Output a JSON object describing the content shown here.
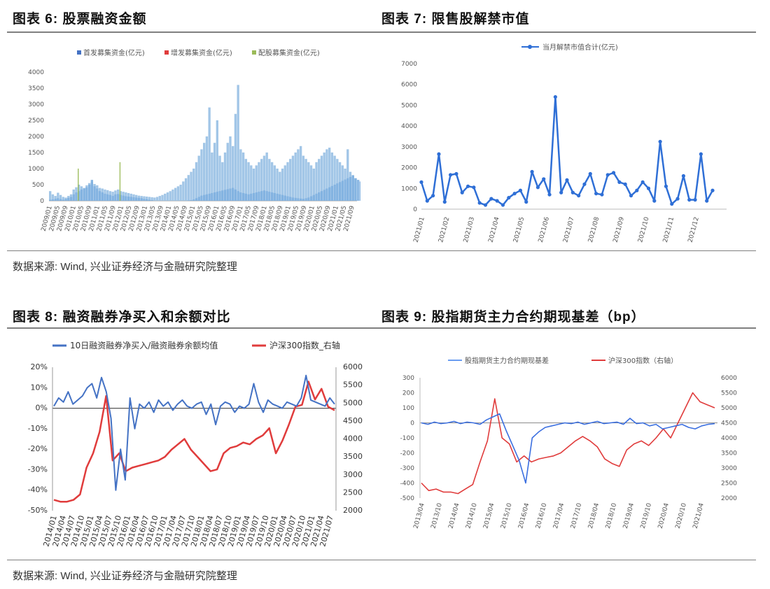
{
  "titles": {
    "fig6": "图表 6: 股票融资金额",
    "fig7": "图表 7: 限售股解禁市值",
    "fig8": "图表 8: 融资融券净买入和余额对比",
    "fig9": "图表 9: 股指期货主力合约期现基差（bp）"
  },
  "source": {
    "top": "数据来源: Wind, 兴业证券经济与金融研究院整理",
    "bottom": "数据来源: Wind, 兴业证券经济与金融研究院整理"
  },
  "colors": {
    "blue": "#4472c4",
    "red": "#e03c3c",
    "lightblue": "#9dc3e6",
    "lightred": "#f4a6a6",
    "green": "#9bbb59",
    "line7": "#2f6fd6"
  },
  "chart_data": [
    {
      "id": "fig6",
      "type": "bar",
      "legend": [
        "首发募集资金(亿元)",
        "增发募集资金(亿元)",
        "配股募集资金(亿元)"
      ],
      "yticks": [
        "0",
        "500",
        "1000",
        "1500",
        "2000",
        "2500",
        "3000",
        "3500",
        "4000"
      ],
      "ylim": [
        0,
        4000
      ],
      "xticks": [
        "2009/01",
        "2009/05",
        "2009/09",
        "2010/01",
        "2010/05",
        "2010/09",
        "2011/01",
        "2011/05",
        "2011/09",
        "2012/01",
        "2012/05",
        "2012/09",
        "2013/01",
        "2013/05",
        "2013/09",
        "2014/01",
        "2014/05",
        "2014/09",
        "2015/01",
        "2015/05",
        "2015/09",
        "2016/01",
        "2016/05",
        "2016/09",
        "2017/01",
        "2017/05",
        "2017/09",
        "2018/01",
        "2018/05",
        "2018/09",
        "2019/01",
        "2019/05",
        "2019/09",
        "2020/01",
        "2020/05",
        "2020/09",
        "2021/01",
        "2021/05",
        "2021/09"
      ],
      "series": [
        {
          "name": "首发募集资金(亿元)",
          "values": [
            30,
            40,
            60,
            80,
            50,
            30,
            60,
            90,
            120,
            200,
            260,
            300,
            350,
            380,
            420,
            500,
            650,
            450,
            380,
            300,
            260,
            220,
            200,
            180,
            150,
            200,
            210,
            180,
            160,
            140,
            130,
            120,
            110,
            100,
            90,
            80,
            60,
            50,
            30,
            20,
            0,
            0,
            0,
            0,
            0,
            0,
            0,
            0,
            0,
            0,
            0,
            0,
            0,
            10,
            20,
            40,
            80,
            120,
            160,
            180,
            200,
            220,
            240,
            260,
            280,
            300,
            320,
            340,
            360,
            380,
            400,
            350,
            300,
            260,
            240,
            220,
            200,
            220,
            240,
            260,
            280,
            300,
            320,
            300,
            280,
            260,
            240,
            220,
            200,
            180,
            160,
            140,
            120,
            100,
            90,
            80,
            70,
            60,
            80,
            100,
            140,
            180,
            220,
            260,
            300,
            340,
            380,
            420,
            460,
            500,
            540,
            580,
            620,
            660,
            700,
            740,
            780,
            700,
            650,
            600,
            550,
            500
          ]
        },
        {
          "name": "增发募集资金(亿元)",
          "values": [
            300,
            200,
            150,
            250,
            180,
            120,
            100,
            150,
            200,
            350,
            420,
            500,
            450,
            400,
            480,
            550,
            600,
            520,
            480,
            400,
            380,
            350,
            330,
            300,
            280,
            320,
            350,
            300,
            280,
            260,
            240,
            220,
            200,
            180,
            160,
            150,
            140,
            130,
            120,
            110,
            100,
            120,
            150,
            180,
            220,
            260,
            300,
            350,
            400,
            450,
            500,
            600,
            700,
            800,
            900,
            1000,
            1200,
            1400,
            1600,
            1800,
            2000,
            2900,
            1500,
            1800,
            2500,
            1400,
            1200,
            1500,
            1800,
            2000,
            1700,
            2700,
            3600,
            1600,
            1500,
            1300,
            1200,
            1100,
            1000,
            1100,
            1200,
            1300,
            1400,
            1500,
            1300,
            1200,
            1100,
            1000,
            900,
            1000,
            1100,
            1200,
            1300,
            1400,
            1500,
            1600,
            1700,
            1400,
            1300,
            1200,
            1100,
            1000,
            1200,
            1300,
            1400,
            1500,
            1600,
            1650,
            1500,
            1400,
            1300,
            1200,
            1100,
            1000,
            1600,
            900,
            800,
            700
          ]
        },
        {
          "name": "配股募集资金(亿元)",
          "values": [
            0,
            0,
            0,
            0,
            0,
            0,
            0,
            0,
            0,
            0,
            0,
            1000,
            0,
            0,
            0,
            0,
            0,
            0,
            0,
            0,
            0,
            0,
            0,
            0,
            0,
            0,
            0,
            1200,
            0,
            0,
            0,
            0,
            0,
            0,
            0,
            0,
            0,
            0,
            0,
            0,
            0,
            0,
            0,
            0,
            0,
            0,
            0,
            0,
            0,
            0,
            0,
            0,
            0,
            0,
            0,
            0,
            0,
            0,
            0,
            0,
            0,
            0,
            0,
            0,
            0,
            0,
            0,
            0,
            0,
            0,
            0,
            0,
            0,
            0,
            0,
            0,
            0,
            0,
            0,
            0,
            0,
            0,
            0,
            0,
            0,
            0,
            0,
            0,
            0,
            0,
            0,
            0,
            0,
            0,
            0,
            0,
            0,
            0,
            0,
            0,
            0,
            0,
            0,
            0,
            0,
            0,
            0,
            0,
            0,
            0,
            0,
            0,
            0,
            0,
            0,
            0,
            0,
            0,
            0,
            0,
            0
          ]
        }
      ]
    },
    {
      "id": "fig7",
      "type": "line",
      "legend": [
        "当月解禁市值合计(亿元)"
      ],
      "yticks": [
        "0",
        "1000",
        "2000",
        "3000",
        "4000",
        "5000",
        "6000",
        "7000"
      ],
      "ylim": [
        0,
        7000
      ],
      "xticks": [
        "2021/01",
        "2021/02",
        "2021/03",
        "2021/04",
        "2021/05",
        "2021/06",
        "2021/07",
        "2021/08",
        "2021/09",
        "2021/10",
        "2021/11",
        "2021/12"
      ],
      "values": [
        1300,
        400,
        650,
        2650,
        350,
        1650,
        1700,
        800,
        1100,
        1050,
        300,
        200,
        500,
        400,
        200,
        550,
        750,
        900,
        350,
        1800,
        1050,
        1450,
        700,
        5400,
        800,
        1400,
        800,
        650,
        1200,
        1700,
        750,
        700,
        1650,
        1750,
        1300,
        1200,
        650,
        900,
        1300,
        1000,
        400,
        3250,
        1100,
        250,
        500,
        1600,
        450,
        450,
        2650,
        400,
        900
      ]
    },
    {
      "id": "fig8",
      "type": "line",
      "legend": [
        "10日融资融券净买入/融资融券余额均值",
        "沪深300指数_右轴"
      ],
      "yticks_left": [
        "20%",
        "10%",
        "0%",
        "-10%",
        "-20%",
        "-30%",
        "-40%",
        "-50%"
      ],
      "ylim_left": [
        -50,
        20
      ],
      "yticks_right": [
        "6000",
        "5500",
        "5000",
        "4500",
        "4000",
        "3500",
        "3000",
        "2500",
        "2000"
      ],
      "ylim_right": [
        2000,
        6000
      ],
      "xticks": [
        "2014/01",
        "2014/04",
        "2014/07",
        "2014/10",
        "2015/01",
        "2015/04",
        "2015/07",
        "2015/10",
        "2016/01",
        "2016/04",
        "2016/07",
        "2016/10",
        "2017/01",
        "2017/04",
        "2017/07",
        "2017/10",
        "2018/01",
        "2018/04",
        "2018/07",
        "2018/10",
        "2019/01",
        "2019/04",
        "2019/07",
        "2019/10",
        "2020/01",
        "2020/04",
        "2020/07",
        "2020/10",
        "2021/01",
        "2021/04",
        "2021/07"
      ],
      "series": [
        {
          "name": "10日融资融券净买入/融资融券余额均值",
          "values": [
            1,
            5,
            3,
            8,
            2,
            4,
            6,
            10,
            12,
            5,
            15,
            8,
            -5,
            -40,
            -20,
            -35,
            5,
            -10,
            2,
            0,
            3,
            -2,
            4,
            1,
            3,
            -1,
            2,
            4,
            1,
            0,
            2,
            3,
            -3,
            2,
            -8,
            1,
            3,
            2,
            -2,
            1,
            0,
            2,
            12,
            3,
            -2,
            4,
            2,
            1,
            0,
            3,
            2,
            1,
            5,
            16,
            4,
            3,
            2,
            1,
            5,
            2
          ]
        },
        {
          "name": "沪深300指数_右轴",
          "values": [
            2300,
            2250,
            2250,
            2300,
            2450,
            3200,
            3600,
            4200,
            5200,
            3400,
            3600,
            3100,
            3200,
            3250,
            3300,
            3350,
            3400,
            3500,
            3700,
            3850,
            4000,
            3700,
            3500,
            3300,
            3100,
            3150,
            3600,
            3750,
            3800,
            3900,
            3850,
            4000,
            4100,
            4300,
            3600,
            3950,
            4400,
            4900,
            4950,
            5600,
            5100,
            5400,
            4900,
            4800
          ]
        }
      ]
    },
    {
      "id": "fig9",
      "type": "line",
      "legend": [
        "股指期货主力合约期现基差",
        "沪深300指数（右轴）"
      ],
      "yticks_left": [
        "300",
        "200",
        "100",
        "0",
        "-100",
        "-200",
        "-300",
        "-400",
        "-500"
      ],
      "ylim_left": [
        -500,
        300
      ],
      "yticks_right": [
        "6000",
        "5500",
        "5000",
        "4500",
        "4000",
        "3500",
        "3000",
        "2500",
        "2000"
      ],
      "ylim_right": [
        2000,
        6000
      ],
      "xticks": [
        "2013/04",
        "2013/10",
        "2014/04",
        "2014/10",
        "2015/04",
        "2015/10",
        "2016/04",
        "2016/10",
        "2017/04",
        "2017/10",
        "2018/04",
        "2018/10",
        "2019/04",
        "2019/10",
        "2020/04",
        "2020/10",
        "2021/04"
      ],
      "series": [
        {
          "name": "股指期货主力合约期现基差",
          "values": [
            0,
            -10,
            5,
            -5,
            0,
            10,
            -5,
            5,
            0,
            -10,
            20,
            40,
            60,
            -50,
            -150,
            -250,
            -400,
            -100,
            -60,
            -30,
            -20,
            -10,
            0,
            -5,
            5,
            -10,
            0,
            10,
            -5,
            0,
            5,
            -10,
            30,
            -5,
            0,
            -20,
            -10,
            -40,
            -30,
            -20,
            -10,
            -30,
            -40,
            -20,
            -10,
            -5
          ]
        },
        {
          "name": "沪深300指数（右轴）",
          "values": [
            2500,
            2250,
            2300,
            2200,
            2200,
            2150,
            2300,
            2450,
            3200,
            3900,
            5300,
            4000,
            3800,
            3200,
            3400,
            3200,
            3300,
            3350,
            3400,
            3500,
            3700,
            3900,
            4050,
            3900,
            3700,
            3300,
            3150,
            3050,
            3600,
            3800,
            3900,
            3750,
            4000,
            4300,
            4000,
            4500,
            5000,
            5500,
            5200,
            5100,
            5000
          ]
        }
      ]
    }
  ]
}
